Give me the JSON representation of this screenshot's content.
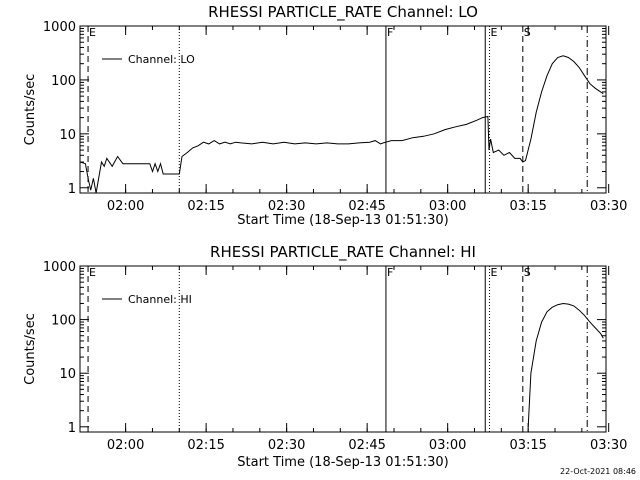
{
  "footer": {
    "timestamp": "22-Oct-2021 08:46"
  },
  "chart_data": [
    {
      "type": "line",
      "title": "RHESSI PARTICLE_RATE Channel: LO",
      "xlabel": "Start Time (18-Sep-13 01:51:30)",
      "ylabel": "Counts/sec",
      "y_scale": "log",
      "ylim": [
        0.8,
        1000
      ],
      "xlim_minutes": [
        0,
        98
      ],
      "x_ticks": [
        "02:00",
        "02:15",
        "02:30",
        "02:45",
        "03:00",
        "03:15",
        "03:30"
      ],
      "y_ticks": [
        "1",
        "10",
        "100",
        "1000"
      ],
      "legend": "top-left",
      "grid": false,
      "series": [
        {
          "name": "Channel: LO",
          "x_minutes": [
            0,
            1,
            1.5,
            2,
            2.5,
            3,
            4,
            4.5,
            5,
            6,
            7,
            8,
            9,
            10,
            11,
            12,
            13,
            13.5,
            14,
            14.5,
            15,
            15.5,
            16,
            17,
            18,
            18.5,
            19,
            20,
            21,
            22,
            23,
            24,
            25,
            26,
            27,
            28,
            29,
            30,
            32,
            34,
            36,
            38,
            40,
            42,
            44,
            46,
            48,
            50,
            52,
            54,
            55,
            56,
            56.5,
            57,
            58,
            60,
            62,
            64,
            66,
            68,
            70,
            72,
            74,
            75,
            76,
            76.2,
            76.5,
            77,
            78,
            79,
            80,
            81,
            82,
            82.5,
            83,
            84,
            85,
            86,
            87,
            88,
            89,
            90,
            91,
            92,
            93,
            94,
            95,
            96,
            97,
            97.5
          ],
          "y_values": [
            3,
            2.8,
            1.5,
            0.9,
            1.5,
            0.8,
            3,
            2.5,
            3.5,
            2.5,
            3.8,
            2.8,
            2.8,
            2.8,
            2.8,
            2.8,
            2.8,
            2,
            2.8,
            2,
            2.8,
            1.8,
            1.8,
            1.8,
            1.8,
            1.8,
            3.8,
            4.5,
            5.5,
            6,
            7,
            6.5,
            7.5,
            6.5,
            7,
            6.5,
            7,
            6.8,
            6.5,
            7,
            6.5,
            7,
            6.5,
            6.8,
            6.5,
            6.8,
            6.5,
            6.5,
            6.8,
            7,
            7.5,
            6.5,
            6.8,
            7,
            7.5,
            7.5,
            8.5,
            9,
            10,
            12,
            13.5,
            15,
            18,
            20,
            21,
            5,
            8,
            4.5,
            5,
            4,
            4.5,
            3.5,
            3.5,
            3,
            3.2,
            8,
            25,
            60,
            120,
            200,
            260,
            280,
            260,
            220,
            170,
            120,
            85,
            70,
            60,
            55
          ]
        }
      ],
      "markers": [
        {
          "label": "E",
          "x_minutes": 1.5,
          "style": "dashed"
        },
        {
          "label": "",
          "x_minutes": 18.5,
          "style": "dotted"
        },
        {
          "label": "F",
          "x_minutes": 57,
          "style": "solid"
        },
        {
          "label": "",
          "x_minutes": 75.5,
          "style": "solid"
        },
        {
          "label": "E",
          "x_minutes": 76.3,
          "style": "dotted"
        },
        {
          "label": "S",
          "x_minutes": 82.5,
          "style": "dashed"
        },
        {
          "label": "",
          "x_minutes": 94.5,
          "style": "dashdot"
        }
      ]
    },
    {
      "type": "line",
      "title": "RHESSI PARTICLE_RATE Channel: HI",
      "xlabel": "Start Time (18-Sep-13 01:51:30)",
      "ylabel": "Counts/sec",
      "y_scale": "log",
      "ylim": [
        0.8,
        1000
      ],
      "xlim_minutes": [
        0,
        98
      ],
      "x_ticks": [
        "02:00",
        "02:15",
        "02:30",
        "02:45",
        "03:00",
        "03:15",
        "03:30"
      ],
      "y_ticks": [
        "1",
        "10",
        "100",
        "1000"
      ],
      "legend": "top-left",
      "grid": false,
      "series": [
        {
          "name": "Channel: HI",
          "x_minutes": [
            83.5,
            84,
            85,
            86,
            87,
            88,
            89,
            90,
            91,
            92,
            93,
            94,
            95,
            96,
            97,
            97.5
          ],
          "y_values": [
            1,
            10,
            40,
            90,
            140,
            170,
            190,
            200,
            195,
            180,
            150,
            120,
            90,
            70,
            55,
            45
          ]
        }
      ],
      "markers": [
        {
          "label": "E",
          "x_minutes": 1.5,
          "style": "dashed"
        },
        {
          "label": "",
          "x_minutes": 18.5,
          "style": "dotted"
        },
        {
          "label": "F",
          "x_minutes": 57,
          "style": "solid"
        },
        {
          "label": "",
          "x_minutes": 75.5,
          "style": "solid"
        },
        {
          "label": "E",
          "x_minutes": 76.3,
          "style": "dotted"
        },
        {
          "label": "S",
          "x_minutes": 82.5,
          "style": "dashed"
        },
        {
          "label": "",
          "x_minutes": 94.5,
          "style": "dashdot"
        }
      ]
    }
  ]
}
